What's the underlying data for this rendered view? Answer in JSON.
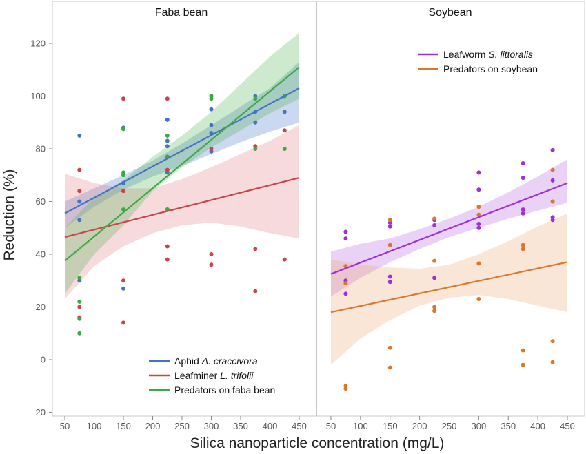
{
  "chart_data": {
    "type": "scatter",
    "xlabel": "Silica nanoparticle concentration (mg/L)",
    "ylabel": "Reduction (%)",
    "xlim": [
      50,
      450
    ],
    "ylim": [
      -20,
      130
    ],
    "x_ticks": [
      50,
      100,
      150,
      200,
      250,
      300,
      350,
      400,
      450
    ],
    "y_ticks": [
      -20,
      0,
      20,
      40,
      60,
      80,
      100,
      120
    ],
    "grid": false,
    "panels": [
      {
        "title": "Faba bean",
        "legend_position": "bottom-right",
        "series": [
          {
            "name": "Aphid A. craccivora",
            "name_parts": [
              [
                "Aphid ",
                false
              ],
              [
                "A. craccivora",
                true
              ]
            ],
            "color": "#4472C4",
            "band_color": "#4472C4",
            "points": [
              [
                75,
                85
              ],
              [
                75,
                60
              ],
              [
                75,
                53
              ],
              [
                75,
                30
              ],
              [
                150,
                88
              ],
              [
                150,
                67
              ],
              [
                150,
                27
              ],
              [
                225,
                91
              ],
              [
                225,
                83
              ],
              [
                225,
                81
              ],
              [
                225,
                77
              ],
              [
                225,
                71
              ],
              [
                300,
                95
              ],
              [
                300,
                89
              ],
              [
                300,
                86
              ],
              [
                300,
                79
              ],
              [
                375,
                100
              ],
              [
                375,
                94
              ],
              [
                375,
                90
              ],
              [
                425,
                100
              ],
              [
                425,
                94
              ]
            ],
            "fit": [
              [
                50,
                55.5
              ],
              [
                450,
                103
              ]
            ],
            "band": [
              [
                50,
                50,
                60
              ],
              [
                100,
                58,
                65
              ],
              [
                150,
                64.5,
                70
              ],
              [
                200,
                69.5,
                75.5
              ],
              [
                250,
                73.5,
                82
              ],
              [
                300,
                78,
                89
              ],
              [
                350,
                82.5,
                96
              ],
              [
                400,
                86.5,
                103
              ],
              [
                450,
                90,
                113
              ]
            ]
          },
          {
            "name": "Leafminer L. trifolii",
            "name_parts": [
              [
                "Leafminer ",
                false
              ],
              [
                "L. trifolii",
                true
              ]
            ],
            "color": "#C9434B",
            "band_color": "#E07A80",
            "points": [
              [
                75,
                72
              ],
              [
                75,
                64
              ],
              [
                75,
                20
              ],
              [
                75,
                16
              ],
              [
                150,
                99
              ],
              [
                150,
                64
              ],
              [
                150,
                30
              ],
              [
                150,
                14
              ],
              [
                225,
                99
              ],
              [
                225,
                72
              ],
              [
                225,
                57
              ],
              [
                225,
                43
              ],
              [
                225,
                38
              ],
              [
                300,
                100
              ],
              [
                300,
                80
              ],
              [
                300,
                40
              ],
              [
                300,
                36
              ],
              [
                375,
                81
              ],
              [
                375,
                42
              ],
              [
                375,
                26
              ],
              [
                425,
                87
              ],
              [
                425,
                38
              ]
            ],
            "fit": [
              [
                50,
                46.5
              ],
              [
                450,
                69
              ]
            ],
            "band": [
              [
                50,
                23,
                70.5
              ],
              [
                100,
                35.5,
                67
              ],
              [
                150,
                43,
                65
              ],
              [
                200,
                48,
                65
              ],
              [
                250,
                51,
                68.5
              ],
              [
                300,
                52,
                73
              ],
              [
                350,
                50.5,
                78
              ],
              [
                400,
                48,
                83
              ],
              [
                450,
                46,
                89
              ]
            ]
          },
          {
            "name": "Predators on faba bean",
            "name_parts": [
              [
                "Predators on faba bean",
                false
              ]
            ],
            "color": "#3EA845",
            "band_color": "#4CB050",
            "points": [
              [
                75,
                31
              ],
              [
                75,
                22
              ],
              [
                75,
                15.5
              ],
              [
                75,
                10
              ],
              [
                150,
                87.5
              ],
              [
                150,
                71
              ],
              [
                150,
                70
              ],
              [
                150,
                57
              ],
              [
                225,
                85
              ],
              [
                225,
                77
              ],
              [
                225,
                57
              ],
              [
                300,
                100
              ],
              [
                300,
                99
              ],
              [
                375,
                99
              ],
              [
                375,
                80
              ],
              [
                425,
                100
              ],
              [
                425,
                80
              ]
            ],
            "fit": [
              [
                50,
                37.5
              ],
              [
                450,
                111
              ]
            ],
            "band": [
              [
                50,
                25,
                50
              ],
              [
                100,
                40,
                61.5
              ],
              [
                150,
                51,
                68
              ],
              [
                200,
                64,
                77
              ],
              [
                250,
                73,
                85
              ],
              [
                300,
                80.5,
                94
              ],
              [
                350,
                87,
                104.5
              ],
              [
                400,
                93.5,
                115
              ],
              [
                450,
                99,
                124
              ]
            ]
          }
        ]
      },
      {
        "title": "Soybean",
        "legend_position": "top-right",
        "series": [
          {
            "name": "Leafworm S. littoralis",
            "name_parts": [
              [
                "Leafworm ",
                false
              ],
              [
                "S. littoralis",
                true
              ]
            ],
            "color": "#9B30D8",
            "band_color": "#B35CE0",
            "points": [
              [
                75,
                48.5
              ],
              [
                75,
                46
              ],
              [
                75,
                30
              ],
              [
                75,
                25
              ],
              [
                150,
                52
              ],
              [
                150,
                50.5
              ],
              [
                150,
                31.5
              ],
              [
                150,
                29.5
              ],
              [
                225,
                53
              ],
              [
                225,
                51
              ],
              [
                225,
                31
              ],
              [
                300,
                71
              ],
              [
                300,
                64.5
              ],
              [
                300,
                51.5
              ],
              [
                300,
                50
              ],
              [
                375,
                74.5
              ],
              [
                375,
                69
              ],
              [
                375,
                57
              ],
              [
                375,
                55.5
              ],
              [
                425,
                79.5
              ],
              [
                425,
                68
              ],
              [
                425,
                54
              ],
              [
                425,
                53
              ]
            ],
            "fit": [
              [
                50,
                32.5
              ],
              [
                450,
                67
              ]
            ],
            "band": [
              [
                50,
                24,
                41
              ],
              [
                100,
                31,
                44
              ],
              [
                150,
                37,
                46
              ],
              [
                200,
                42,
                49.5
              ],
              [
                250,
                46.5,
                53.5
              ],
              [
                300,
                50,
                58
              ],
              [
                350,
                53.5,
                63.5
              ],
              [
                400,
                56.5,
                69.5
              ],
              [
                450,
                59.5,
                76
              ]
            ]
          },
          {
            "name": "Predators on soybean",
            "name_parts": [
              [
                "Predators on soybean",
                false
              ]
            ],
            "color": "#D9782D",
            "band_color": "#E8A56E",
            "points": [
              [
                75,
                35.5
              ],
              [
                75,
                29
              ],
              [
                75,
                -10
              ],
              [
                75,
                -11
              ],
              [
                150,
                53
              ],
              [
                150,
                43.5
              ],
              [
                150,
                4.5
              ],
              [
                150,
                -3
              ],
              [
                225,
                53.5
              ],
              [
                225,
                37.5
              ],
              [
                225,
                20
              ],
              [
                225,
                18.5
              ],
              [
                300,
                58
              ],
              [
                300,
                55
              ],
              [
                300,
                36.5
              ],
              [
                300,
                23
              ],
              [
                375,
                43.5
              ],
              [
                375,
                42
              ],
              [
                375,
                3.5
              ],
              [
                375,
                -2
              ],
              [
                425,
                72
              ],
              [
                425,
                60
              ],
              [
                425,
                7
              ],
              [
                425,
                -1
              ]
            ],
            "fit": [
              [
                50,
                18
              ],
              [
                450,
                37
              ]
            ],
            "band": [
              [
                50,
                -2,
                38
              ],
              [
                100,
                8,
                36
              ],
              [
                150,
                15,
                35
              ],
              [
                200,
                20.5,
                34.5
              ],
              [
                250,
                23.5,
                36
              ],
              [
                300,
                24.5,
                40
              ],
              [
                350,
                23,
                45
              ],
              [
                400,
                20.5,
                50.5
              ],
              [
                450,
                18,
                55.5
              ]
            ]
          }
        ]
      }
    ]
  }
}
